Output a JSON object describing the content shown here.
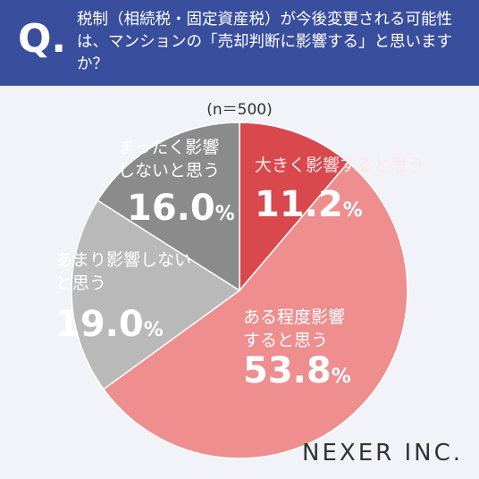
{
  "chart_data": {
    "type": "pie",
    "title": "税制（相続税・固定資産税）が今後変更される可能性は、マンションの「売却判断に影響する」と思いますか？",
    "question_mark": "Q.",
    "subtitle": "(n＝500)",
    "brand": "NEXER INC.",
    "categories": [
      "大きく影響すると思う",
      "ある程度影響すると思う",
      "あまり影響しないと思う",
      "まったく影響しないと思う"
    ],
    "values": [
      11.2,
      53.8,
      19.0,
      16.0
    ],
    "value_labels": [
      "11.2%",
      "53.8%",
      "19.0%",
      "16.0%"
    ],
    "colors": [
      "#d9484d",
      "#ee8e8f",
      "#b9b9b9",
      "#8b8b8b"
    ]
  }
}
